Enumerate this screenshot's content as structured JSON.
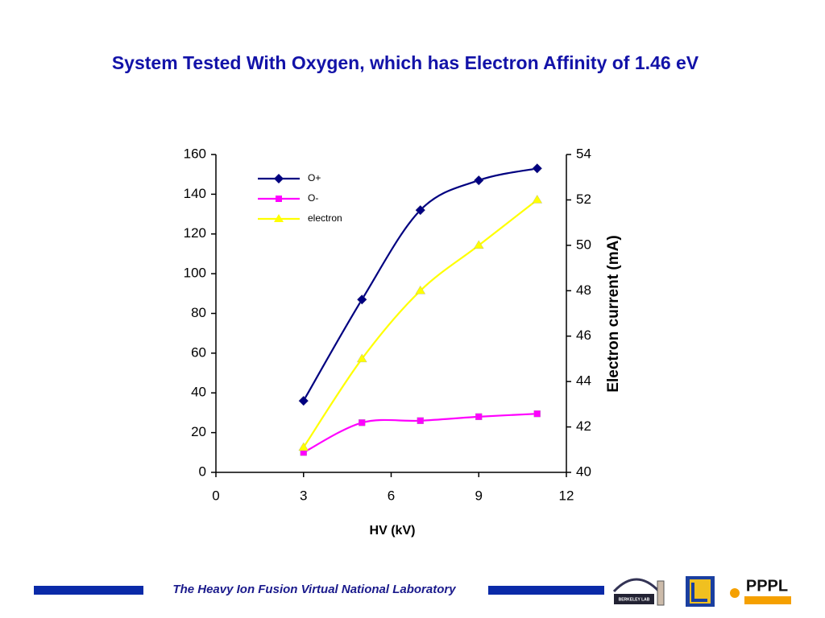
{
  "chart_data": {
    "type": "line",
    "title": "System Tested With Oxygen, which has Electron Affinity of 1.46 eV",
    "x_label": "HV (kV)",
    "y2_label": "Electron current (mA)",
    "x": [
      3,
      5,
      7,
      9,
      11
    ],
    "series": [
      {
        "name": "O+",
        "color": "#000080",
        "marker": "diamond",
        "values": [
          36,
          87,
          132,
          147,
          153
        ]
      },
      {
        "name": "O-",
        "color": "#ff00ff",
        "marker": "square",
        "values": [
          10,
          25,
          26,
          28,
          29.5
        ]
      },
      {
        "name": "electron",
        "color": "#ffff00",
        "marker": "triangle",
        "axis": "y2",
        "values": [
          41.1,
          45,
          48,
          50,
          52
        ]
      }
    ],
    "xlim": [
      0,
      12
    ],
    "xticks": [
      0,
      3,
      6,
      9,
      12
    ],
    "ylim": [
      0,
      160
    ],
    "yticks": [
      0,
      20,
      40,
      60,
      80,
      100,
      120,
      140,
      160
    ],
    "y2lim": [
      40,
      54
    ],
    "y2ticks": [
      40,
      42,
      44,
      46,
      48,
      50,
      52,
      54
    ],
    "legend": "upper left",
    "smooth": true
  },
  "footer": {
    "text": "The Heavy Ion Fusion Virtual National Laboratory",
    "logos": [
      "BERKELEY LAB",
      "PPPL"
    ]
  }
}
